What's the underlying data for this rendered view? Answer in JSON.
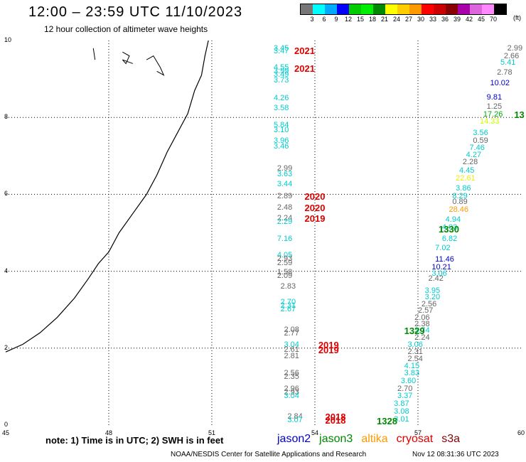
{
  "title": "12:00 – 23:59 UTC 11/10/2023",
  "subtitle": "12 hour collection of altimeter wave heights",
  "legend": {
    "unit": "(ft)",
    "colors": [
      "#777777",
      "#00ffff",
      "#00aaff",
      "#0000ff",
      "#00cc00",
      "#00ee00",
      "#008800",
      "#ffff00",
      "#ffcc00",
      "#ff9900",
      "#ff0000",
      "#cc0000",
      "#880000",
      "#aa00aa",
      "#dd66dd",
      "#ff88ff",
      "#000000"
    ],
    "labels": [
      "3",
      "6",
      "9",
      "12",
      "15",
      "18",
      "21",
      "24",
      "27",
      "30",
      "33",
      "36",
      "39",
      "42",
      "45",
      "70"
    ]
  },
  "axes": {
    "x_ticks": [
      "45",
      "48",
      "51",
      "54",
      "57",
      "60"
    ],
    "y_ticks": [
      "10",
      "8",
      "6",
      "4",
      "2",
      "0"
    ]
  },
  "map_data": {
    "lon_range": [
      45,
      60
    ],
    "lat_range": [
      0,
      10
    ],
    "coastline_lonlat": [
      [
        45,
        1.9
      ],
      [
        45.5,
        2.1
      ],
      [
        46,
        2.4
      ],
      [
        46.5,
        2.8
      ],
      [
        47,
        3.3
      ],
      [
        47.4,
        3.8
      ],
      [
        47.7,
        4.2
      ],
      [
        48,
        4.5
      ],
      [
        48.3,
        5
      ],
      [
        48.7,
        5.5
      ],
      [
        49.1,
        6
      ],
      [
        49.4,
        6.5
      ],
      [
        49.7,
        7.1
      ],
      [
        50,
        7.6
      ],
      [
        50.3,
        8.1
      ],
      [
        50.5,
        8.7
      ],
      [
        50.7,
        9.1
      ],
      [
        50.8,
        9.6
      ],
      [
        50.9,
        10
      ]
    ],
    "islands_lonlat": [
      [
        [
          47.55,
          9.8
        ],
        [
          47.6,
          9.5
        ]
      ],
      [
        [
          48.4,
          9.7
        ],
        [
          48.6,
          9.6
        ],
        [
          48.5,
          9.4
        ],
        [
          48.4,
          9.5
        ],
        [
          48.7,
          9.4
        ]
      ],
      [
        [
          49.1,
          9.5
        ],
        [
          49.3,
          9.6
        ],
        [
          49.5,
          9.3
        ],
        [
          49.6,
          9.1
        ],
        [
          49.4,
          9.2
        ]
      ]
    ],
    "points": [
      {
        "text": "3.45",
        "lon": 52.8,
        "lat": 9.8,
        "color": "#00cccc"
      },
      {
        "text": "3.47",
        "lon": 52.8,
        "lat": 9.73,
        "color": "#00cccc"
      },
      {
        "text": "4.55",
        "lon": 52.8,
        "lat": 9.3,
        "color": "#00cccc"
      },
      {
        "text": "3.99",
        "lon": 52.8,
        "lat": 9.21,
        "color": "#00cccc"
      },
      {
        "text": "3.49",
        "lon": 52.8,
        "lat": 9.12,
        "color": "#00cccc"
      },
      {
        "text": "3.73",
        "lon": 52.8,
        "lat": 8.97,
        "color": "#00cccc"
      },
      {
        "text": "4.26",
        "lon": 52.8,
        "lat": 8.5,
        "color": "#00cccc"
      },
      {
        "text": "3.58",
        "lon": 52.8,
        "lat": 8.25,
        "color": "#00cccc"
      },
      {
        "text": "5.84",
        "lon": 52.8,
        "lat": 7.8,
        "color": "#00cccc"
      },
      {
        "text": "3.10",
        "lon": 52.8,
        "lat": 7.67,
        "color": "#00cccc"
      },
      {
        "text": "3.96",
        "lon": 52.8,
        "lat": 7.4,
        "color": "#00cccc"
      },
      {
        "text": "3.46",
        "lon": 52.8,
        "lat": 7.25,
        "color": "#00cccc"
      },
      {
        "text": "2.99",
        "lon": 52.9,
        "lat": 6.68,
        "color": "#666666"
      },
      {
        "text": "3.63",
        "lon": 52.9,
        "lat": 6.53,
        "color": "#00cccc"
      },
      {
        "text": "3.44",
        "lon": 52.9,
        "lat": 6.27,
        "color": "#00cccc"
      },
      {
        "text": "2.89",
        "lon": 52.9,
        "lat": 5.95,
        "color": "#666666"
      },
      {
        "text": "2.48",
        "lon": 52.9,
        "lat": 5.65,
        "color": "#666666"
      },
      {
        "text": "2.24",
        "lon": 52.9,
        "lat": 5.38,
        "color": "#666666"
      },
      {
        "text": "2.29",
        "lon": 52.9,
        "lat": 5.28,
        "color": "#00cccc"
      },
      {
        "text": "7.16",
        "lon": 52.9,
        "lat": 4.85,
        "color": "#00cccc"
      },
      {
        "text": "4.05",
        "lon": 52.9,
        "lat": 4.42,
        "color": "#00cccc"
      },
      {
        "text": "2.93",
        "lon": 52.9,
        "lat": 4.33,
        "color": "#666666"
      },
      {
        "text": "2.59",
        "lon": 52.9,
        "lat": 4.22,
        "color": "#666666"
      },
      {
        "text": "1.58",
        "lon": 52.9,
        "lat": 3.98,
        "color": "#666666"
      },
      {
        "text": "2.09",
        "lon": 52.9,
        "lat": 3.88,
        "color": "#666666"
      },
      {
        "text": "2.83",
        "lon": 53,
        "lat": 3.6,
        "color": "#666666"
      },
      {
        "text": "2.70",
        "lon": 53,
        "lat": 3.2,
        "color": "#00cccc"
      },
      {
        "text": "2.31",
        "lon": 53,
        "lat": 3.1,
        "color": "#00cccc"
      },
      {
        "text": "2.67",
        "lon": 53,
        "lat": 3.02,
        "color": "#00cccc"
      },
      {
        "text": "2.08",
        "lon": 53.1,
        "lat": 2.48,
        "color": "#666666"
      },
      {
        "text": "2.77",
        "lon": 53.1,
        "lat": 2.38,
        "color": "#666666"
      },
      {
        "text": "3.04",
        "lon": 53.1,
        "lat": 2.08,
        "color": "#00cccc"
      },
      {
        "text": "2.61",
        "lon": 53.1,
        "lat": 1.96,
        "color": "#666666"
      },
      {
        "text": "2.81",
        "lon": 53.1,
        "lat": 1.8,
        "color": "#666666"
      },
      {
        "text": "2.56",
        "lon": 53.1,
        "lat": 1.35,
        "color": "#666666"
      },
      {
        "text": "2.35",
        "lon": 53.1,
        "lat": 1.25,
        "color": "#666666"
      },
      {
        "text": "2.96",
        "lon": 53.1,
        "lat": 0.95,
        "color": "#666666"
      },
      {
        "text": "2.93",
        "lon": 53.1,
        "lat": 0.85,
        "color": "#666666"
      },
      {
        "text": "3.04",
        "lon": 53.1,
        "lat": 0.75,
        "color": "#00cccc"
      },
      {
        "text": "2.84",
        "lon": 53.2,
        "lat": 0.23,
        "color": "#666666"
      },
      {
        "text": "3.07",
        "lon": 53.2,
        "lat": 0.13,
        "color": "#00cccc"
      },
      {
        "text": "2.99",
        "lon": 59.6,
        "lat": 9.8,
        "color": "#666666"
      },
      {
        "text": "2.66",
        "lon": 59.5,
        "lat": 9.6,
        "color": "#666666"
      },
      {
        "text": "5.41",
        "lon": 59.4,
        "lat": 9.43,
        "color": "#00cccc"
      },
      {
        "text": "2.78",
        "lon": 59.3,
        "lat": 9.17,
        "color": "#666666"
      },
      {
        "text": "10.02",
        "lon": 59.1,
        "lat": 8.9,
        "color": "#0000cc"
      },
      {
        "text": "9.81",
        "lon": 59,
        "lat": 8.52,
        "color": "#0000cc"
      },
      {
        "text": "1.25",
        "lon": 59,
        "lat": 8.28,
        "color": "#666666"
      },
      {
        "text": "17.26",
        "lon": 58.9,
        "lat": 8.08,
        "color": "#00aa00"
      },
      {
        "text": "14.33",
        "lon": 58.8,
        "lat": 7.9,
        "color": "#ccff00"
      },
      {
        "text": "3.56",
        "lon": 58.6,
        "lat": 7.6,
        "color": "#00cccc"
      },
      {
        "text": "0.59",
        "lon": 58.6,
        "lat": 7.4,
        "color": "#666666"
      },
      {
        "text": "7.46",
        "lon": 58.5,
        "lat": 7.2,
        "color": "#00cccc"
      },
      {
        "text": "4.27",
        "lon": 58.4,
        "lat": 7.03,
        "color": "#00cccc"
      },
      {
        "text": "2.28",
        "lon": 58.3,
        "lat": 6.83,
        "color": "#666666"
      },
      {
        "text": "4.45",
        "lon": 58.2,
        "lat": 6.62,
        "color": "#00cccc"
      },
      {
        "text": "22.61",
        "lon": 58.1,
        "lat": 6.42,
        "color": "#eeee00"
      },
      {
        "text": "3.86",
        "lon": 58.1,
        "lat": 6.15,
        "color": "#00cccc"
      },
      {
        "text": "8.29",
        "lon": 58,
        "lat": 5.95,
        "color": "#00cccc"
      },
      {
        "text": "0.89",
        "lon": 58,
        "lat": 5.8,
        "color": "#666666"
      },
      {
        "text": "28.46",
        "lon": 57.9,
        "lat": 5.6,
        "color": "#ff9900"
      },
      {
        "text": "4.94",
        "lon": 57.8,
        "lat": 5.35,
        "color": "#00cccc"
      },
      {
        "text": "4.03",
        "lon": 57.7,
        "lat": 5.13,
        "color": "#00cccc"
      },
      {
        "text": "6.82",
        "lon": 57.7,
        "lat": 4.85,
        "color": "#00cccc"
      },
      {
        "text": "7.02",
        "lon": 57.5,
        "lat": 4.6,
        "color": "#00cccc"
      },
      {
        "text": "11.46",
        "lon": 57.5,
        "lat": 4.3,
        "color": "#0000cc"
      },
      {
        "text": "10.21",
        "lon": 57.4,
        "lat": 4.1,
        "color": "#0000cc"
      },
      {
        "text": "3.06",
        "lon": 57.4,
        "lat": 3.93,
        "color": "#00cccc"
      },
      {
        "text": "2.42",
        "lon": 57.3,
        "lat": 3.8,
        "color": "#666666"
      },
      {
        "text": "3.95",
        "lon": 57.2,
        "lat": 3.5,
        "color": "#00cccc"
      },
      {
        "text": "3.20",
        "lon": 57.2,
        "lat": 3.33,
        "color": "#00cccc"
      },
      {
        "text": "2.56",
        "lon": 57.1,
        "lat": 3.15,
        "color": "#666666"
      },
      {
        "text": "2.57",
        "lon": 57,
        "lat": 2.97,
        "color": "#666666"
      },
      {
        "text": "2.06",
        "lon": 56.9,
        "lat": 2.8,
        "color": "#666666"
      },
      {
        "text": "2.38",
        "lon": 56.9,
        "lat": 2.62,
        "color": "#666666"
      },
      {
        "text": "3.74",
        "lon": 56.9,
        "lat": 2.45,
        "color": "#00cccc"
      },
      {
        "text": "2.24",
        "lon": 56.9,
        "lat": 2.28,
        "color": "#666666"
      },
      {
        "text": "3.06",
        "lon": 56.7,
        "lat": 2.08,
        "color": "#00cccc"
      },
      {
        "text": "2.31",
        "lon": 56.7,
        "lat": 1.9,
        "color": "#666666"
      },
      {
        "text": "2.54",
        "lon": 56.7,
        "lat": 1.72,
        "color": "#666666"
      },
      {
        "text": "4.15",
        "lon": 56.6,
        "lat": 1.53,
        "color": "#00cccc"
      },
      {
        "text": "3.83",
        "lon": 56.6,
        "lat": 1.35,
        "color": "#00cccc"
      },
      {
        "text": "3.60",
        "lon": 56.5,
        "lat": 1.15,
        "color": "#00cccc"
      },
      {
        "text": "2.70",
        "lon": 56.4,
        "lat": 0.95,
        "color": "#666666"
      },
      {
        "text": "3.37",
        "lon": 56.4,
        "lat": 0.75,
        "color": "#00cccc"
      },
      {
        "text": "3.87",
        "lon": 56.3,
        "lat": 0.55,
        "color": "#00cccc"
      },
      {
        "text": "3.08",
        "lon": 56.3,
        "lat": 0.35,
        "color": "#00cccc"
      },
      {
        "text": "3.01",
        "lon": 56.3,
        "lat": 0.15,
        "color": "#00cccc"
      }
    ],
    "pass_labels": [
      {
        "text": "2021",
        "lon": 53.4,
        "lat": 9.75,
        "color": "#dd0000"
      },
      {
        "text": "2021",
        "lon": 53.4,
        "lat": 9.28,
        "color": "#dd0000"
      },
      {
        "text": "2020",
        "lon": 53.7,
        "lat": 5.95,
        "color": "#dd0000"
      },
      {
        "text": "2020",
        "lon": 53.7,
        "lat": 5.65,
        "color": "#dd0000"
      },
      {
        "text": "2019",
        "lon": 53.7,
        "lat": 5.38,
        "color": "#dd0000"
      },
      {
        "text": "2019",
        "lon": 54.1,
        "lat": 2.08,
        "color": "#dd0000"
      },
      {
        "text": "2019",
        "lon": 54.1,
        "lat": 1.96,
        "color": "#dd0000"
      },
      {
        "text": "2018",
        "lon": 54.3,
        "lat": 0.23,
        "color": "#dd0000"
      },
      {
        "text": "2018",
        "lon": 54.3,
        "lat": 0.13,
        "color": "#dd0000"
      },
      {
        "text": "1330",
        "lon": 57.6,
        "lat": 5.1,
        "color": "#008800"
      },
      {
        "text": "1329",
        "lon": 56.6,
        "lat": 2.45,
        "color": "#008800"
      },
      {
        "text": "1328",
        "lon": 55.8,
        "lat": 0.12,
        "color": "#008800"
      },
      {
        "text": "13",
        "lon": 59.8,
        "lat": 8.08,
        "color": "#008800"
      }
    ]
  },
  "note": "note:  1) Time is in UTC;  2) SWH is in feet",
  "satellites": [
    {
      "name": "jason2",
      "color": "#0000cc"
    },
    {
      "name": "jason3",
      "color": "#008800"
    },
    {
      "name": "altika",
      "color": "#ff9900"
    },
    {
      "name": "cryosat",
      "color": "#dd0000"
    },
    {
      "name": "s3a",
      "color": "#880000"
    }
  ],
  "credit": "NOAA/NESDIS Center for Satellite Applications and Research",
  "timestamp": "Nov 12 08:31:36 UTC 2023"
}
